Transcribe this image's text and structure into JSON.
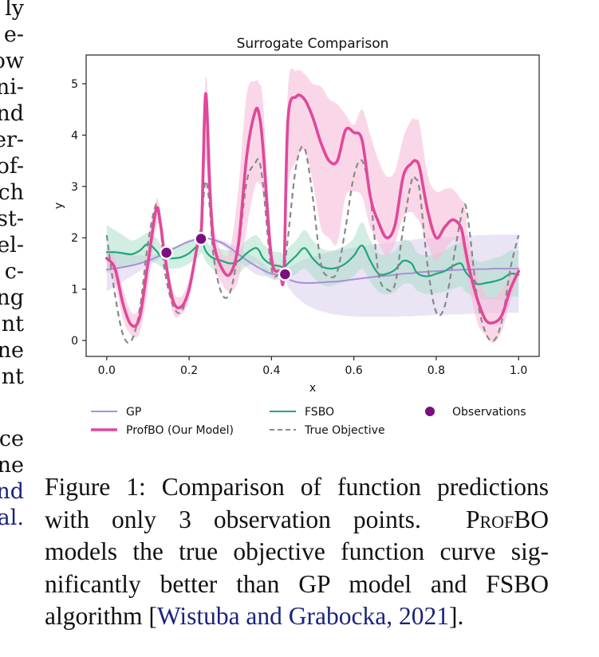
{
  "left_column_fragments": [
    {
      "text": "ly",
      "link": false
    },
    {
      "text": "e-",
      "link": false
    },
    {
      "text": "ow",
      "link": false
    },
    {
      "text": "ni-",
      "link": false
    },
    {
      "text": "nd",
      "link": false
    },
    {
      "text": "er-",
      "link": false
    },
    {
      "text": "of-",
      "link": false
    },
    {
      "text": "ch",
      "link": false
    },
    {
      "text": "st-",
      "link": false
    },
    {
      "text": "el-",
      "link": false
    },
    {
      "text": "c-",
      "link": false
    },
    {
      "text": "ng",
      "link": false
    },
    {
      "text": "nt",
      "link": false
    },
    {
      "text": "ne",
      "link": false
    },
    {
      "text": "nt",
      "link": false
    },
    {
      "text": "ce",
      "link": false
    },
    {
      "text": "ne",
      "link": false
    },
    {
      "text": "nd",
      "link": true
    },
    {
      "text": "al.",
      "link": true
    }
  ],
  "caption": {
    "label": "Figure 1:",
    "line1": "Comparison of function predictions",
    "line2_a": "with only 3 observation points.",
    "line2_b": "ProfBO",
    "line3": "models the true objective function curve sig-",
    "line4": "nificantly better than GP model and FSBO",
    "line5_a": "algorithm [",
    "line5_cite": "Wistuba and Grabocka, 2021",
    "line5_b": "]."
  },
  "colors": {
    "gp": "#a98fd6",
    "gp_band": "#d9cdec",
    "fsbo": "#1fa77a",
    "fsbo_band": "#a6dcc5",
    "profbo": "#e0489a",
    "profbo_band": "#f6bcd9",
    "true": "#888888",
    "observation": "#7b0e82",
    "citation": "#1a237e"
  },
  "chart_data": {
    "type": "line",
    "title": "Surrogate Comparison",
    "xlabel": "x",
    "ylabel": "y",
    "xlim": [
      -0.05,
      1.05
    ],
    "ylim": [
      -0.31,
      5.56
    ],
    "xticks": [
      0.0,
      0.2,
      0.4,
      0.6,
      0.8,
      1.0
    ],
    "xtick_labels": [
      "0.0",
      "0.2",
      "0.4",
      "0.6",
      "0.8",
      "1.0"
    ],
    "yticks": [
      0,
      1,
      2,
      3,
      4,
      5
    ],
    "ytick_labels": [
      "0",
      "1",
      "2",
      "3",
      "4",
      "5"
    ],
    "grid": false,
    "legend": {
      "placement": "bottom",
      "columns": 3,
      "entries": [
        {
          "key": "gp",
          "label": "GP"
        },
        {
          "key": "fsbo",
          "label": "FSBO"
        },
        {
          "key": "obs",
          "label": "Observations"
        },
        {
          "key": "profbo",
          "label": "ProfBO (Our Model)"
        },
        {
          "key": "true",
          "label": "True Objective"
        }
      ]
    },
    "x": [
      0.0,
      0.02,
      0.04,
      0.06,
      0.08,
      0.1,
      0.12,
      0.13,
      0.14,
      0.16,
      0.18,
      0.2,
      0.22,
      0.23,
      0.24,
      0.25,
      0.26,
      0.28,
      0.3,
      0.32,
      0.34,
      0.36,
      0.37,
      0.38,
      0.4,
      0.42,
      0.43,
      0.44,
      0.46,
      0.48,
      0.5,
      0.52,
      0.54,
      0.56,
      0.58,
      0.6,
      0.62,
      0.64,
      0.66,
      0.68,
      0.7,
      0.72,
      0.74,
      0.75,
      0.76,
      0.78,
      0.8,
      0.82,
      0.84,
      0.86,
      0.87,
      0.88,
      0.9,
      0.92,
      0.94,
      0.96,
      0.98,
      1.0
    ],
    "series": [
      {
        "name": "True Objective",
        "key": "true",
        "style": "dashed",
        "values": [
          2.05,
          0.9,
          0.1,
          0.0,
          0.6,
          1.9,
          2.65,
          2.3,
          1.4,
          0.7,
          0.55,
          1.0,
          1.8,
          2.3,
          3.1,
          2.6,
          1.6,
          0.9,
          0.95,
          1.8,
          3.1,
          3.45,
          3.5,
          3.0,
          1.4,
          1.3,
          1.35,
          2.0,
          3.4,
          3.75,
          2.8,
          1.5,
          1.25,
          1.35,
          2.2,
          3.2,
          3.5,
          2.8,
          1.3,
          1.0,
          1.1,
          2.2,
          3.1,
          3.15,
          2.9,
          1.4,
          0.55,
          0.65,
          1.5,
          2.4,
          2.65,
          2.2,
          0.8,
          0.15,
          0.0,
          0.4,
          1.4,
          2.05
        ]
      },
      {
        "name": "ProfBO (Our Model)",
        "key": "profbo",
        "style": "solid",
        "values": [
          1.6,
          1.4,
          0.7,
          0.3,
          0.45,
          1.5,
          2.55,
          2.3,
          1.7,
          0.8,
          0.65,
          1.0,
          1.85,
          2.2,
          4.8,
          3.0,
          1.9,
          1.4,
          1.3,
          1.9,
          3.6,
          4.45,
          4.4,
          3.7,
          1.6,
          1.35,
          1.3,
          4.3,
          4.75,
          4.7,
          4.35,
          3.85,
          3.5,
          3.5,
          4.1,
          4.05,
          3.9,
          2.8,
          2.3,
          2.0,
          2.25,
          3.2,
          3.45,
          3.5,
          3.35,
          2.5,
          2.0,
          2.2,
          2.35,
          2.2,
          1.8,
          1.4,
          0.8,
          0.4,
          0.35,
          0.5,
          1.0,
          1.35
        ],
        "band_lower": [
          1.4,
          1.1,
          0.4,
          0.1,
          0.15,
          1.0,
          2.2,
          2.1,
          1.5,
          0.55,
          0.5,
          0.8,
          1.75,
          2.0,
          3.5,
          2.5,
          1.5,
          1.1,
          0.95,
          1.2,
          2.2,
          3.0,
          3.05,
          2.8,
          1.3,
          1.25,
          1.25,
          3.0,
          3.5,
          3.7,
          3.1,
          2.2,
          2.0,
          1.9,
          2.8,
          2.9,
          2.8,
          2.2,
          1.9,
          1.65,
          1.9,
          2.4,
          2.5,
          2.4,
          2.3,
          1.85,
          1.55,
          1.75,
          1.95,
          1.9,
          1.5,
          1.05,
          0.35,
          0.1,
          -0.05,
          0.2,
          0.75,
          1.25
        ],
        "band_upper": [
          1.75,
          1.6,
          1.0,
          0.55,
          0.7,
          1.9,
          2.75,
          2.5,
          1.9,
          1.0,
          0.85,
          1.2,
          1.95,
          2.4,
          5.1,
          4.0,
          2.3,
          1.7,
          1.8,
          3.0,
          4.8,
          5.05,
          5.0,
          4.6,
          1.9,
          1.45,
          1.35,
          4.9,
          5.25,
          5.2,
          5.0,
          4.95,
          4.7,
          4.6,
          4.4,
          4.2,
          4.5,
          4.0,
          3.5,
          3.2,
          3.3,
          3.95,
          4.3,
          4.3,
          4.2,
          3.2,
          2.9,
          2.95,
          2.95,
          2.75,
          2.6,
          1.9,
          1.3,
          0.9,
          0.85,
          1.0,
          1.3,
          1.45
        ]
      },
      {
        "name": "FSBO",
        "key": "fsbo",
        "style": "solid",
        "values": [
          1.72,
          1.72,
          1.7,
          1.68,
          1.75,
          1.88,
          1.75,
          1.65,
          1.6,
          1.6,
          1.62,
          1.7,
          1.85,
          1.95,
          1.75,
          1.65,
          1.6,
          1.55,
          1.5,
          1.55,
          1.7,
          1.8,
          1.75,
          1.6,
          1.48,
          1.45,
          1.42,
          1.5,
          1.65,
          1.8,
          1.6,
          1.45,
          1.4,
          1.42,
          1.5,
          1.65,
          1.85,
          1.55,
          1.3,
          1.3,
          1.38,
          1.55,
          1.5,
          1.35,
          1.28,
          1.25,
          1.3,
          1.35,
          1.45,
          1.5,
          1.35,
          1.25,
          1.1,
          1.12,
          1.15,
          1.2,
          1.3,
          1.28
        ],
        "band_lower": [
          1.3,
          1.4,
          1.45,
          1.45,
          1.5,
          1.55,
          1.5,
          1.45,
          1.4,
          1.4,
          1.42,
          1.5,
          1.6,
          1.7,
          1.55,
          1.45,
          1.38,
          1.3,
          1.25,
          1.3,
          1.45,
          1.5,
          1.45,
          1.32,
          1.2,
          1.18,
          1.15,
          1.2,
          1.3,
          1.4,
          1.25,
          1.1,
          1.05,
          1.1,
          1.15,
          1.25,
          1.4,
          1.15,
          0.95,
          0.9,
          0.95,
          1.1,
          1.1,
          1.0,
          0.95,
          0.9,
          0.92,
          0.95,
          1.0,
          1.05,
          0.95,
          0.9,
          0.8,
          0.8,
          0.8,
          0.8,
          0.85,
          0.85
        ],
        "band_upper": [
          2.25,
          2.15,
          2.05,
          1.95,
          2.0,
          2.1,
          2.0,
          1.88,
          1.82,
          1.82,
          1.85,
          1.92,
          2.05,
          2.15,
          1.98,
          1.85,
          1.82,
          1.78,
          1.75,
          1.8,
          1.95,
          2.05,
          2.0,
          1.88,
          1.75,
          1.72,
          1.7,
          1.8,
          1.95,
          2.15,
          1.95,
          1.8,
          1.75,
          1.78,
          1.85,
          2.0,
          2.3,
          1.95,
          1.7,
          1.68,
          1.75,
          1.95,
          1.9,
          1.75,
          1.68,
          1.65,
          1.7,
          1.75,
          1.85,
          1.9,
          1.8,
          1.7,
          1.55,
          1.55,
          1.6,
          1.65,
          1.75,
          1.75
        ]
      },
      {
        "name": "GP",
        "key": "gp",
        "style": "solid",
        "values": [
          1.38,
          1.4,
          1.43,
          1.46,
          1.5,
          1.55,
          1.62,
          1.66,
          1.7,
          1.78,
          1.86,
          1.93,
          1.97,
          1.98,
          1.99,
          1.98,
          1.96,
          1.9,
          1.8,
          1.68,
          1.56,
          1.46,
          1.41,
          1.37,
          1.3,
          1.28,
          1.28,
          1.2,
          1.14,
          1.12,
          1.12,
          1.13,
          1.14,
          1.15,
          1.17,
          1.19,
          1.21,
          1.23,
          1.25,
          1.26,
          1.28,
          1.3,
          1.31,
          1.32,
          1.33,
          1.34,
          1.35,
          1.36,
          1.37,
          1.38,
          1.38,
          1.38,
          1.39,
          1.39,
          1.4,
          1.4,
          1.4,
          1.4
        ],
        "band_lower": [
          0.95,
          1.05,
          1.15,
          1.25,
          1.35,
          1.45,
          1.55,
          1.62,
          1.68,
          1.76,
          1.84,
          1.9,
          1.95,
          1.97,
          1.97,
          1.96,
          1.93,
          1.85,
          1.72,
          1.56,
          1.42,
          1.3,
          1.27,
          1.25,
          1.26,
          1.27,
          1.27,
          1.05,
          0.85,
          0.72,
          0.63,
          0.57,
          0.53,
          0.5,
          0.48,
          0.47,
          0.46,
          0.46,
          0.46,
          0.46,
          0.46,
          0.47,
          0.47,
          0.48,
          0.48,
          0.49,
          0.5,
          0.5,
          0.51,
          0.51,
          0.52,
          0.52,
          0.52,
          0.53,
          0.53,
          0.53,
          0.54,
          0.54
        ],
        "band_upper": [
          1.8,
          1.75,
          1.72,
          1.68,
          1.66,
          1.65,
          1.68,
          1.7,
          1.72,
          1.8,
          1.88,
          1.96,
          1.99,
          2.0,
          2.01,
          2.0,
          1.99,
          1.95,
          1.88,
          1.8,
          1.7,
          1.62,
          1.56,
          1.5,
          1.35,
          1.3,
          1.29,
          1.4,
          1.5,
          1.58,
          1.63,
          1.68,
          1.72,
          1.75,
          1.78,
          1.81,
          1.84,
          1.86,
          1.88,
          1.9,
          1.92,
          1.94,
          1.96,
          1.97,
          1.98,
          1.99,
          2.0,
          2.01,
          2.02,
          2.03,
          2.04,
          2.04,
          2.05,
          2.05,
          2.06,
          2.06,
          2.06,
          2.06
        ]
      }
    ],
    "observations": {
      "name": "Observations",
      "x": [
        0.145,
        0.229,
        0.433
      ],
      "y": [
        1.71,
        1.98,
        1.29
      ]
    }
  }
}
